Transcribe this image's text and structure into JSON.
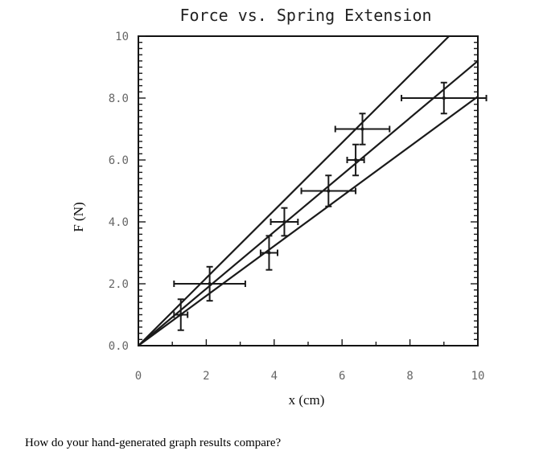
{
  "chart_data": {
    "type": "scatter",
    "title": "Force vs. Spring Extension",
    "xlabel": "x (cm)",
    "ylabel": "F (N)",
    "xlim": [
      0,
      10
    ],
    "ylim": [
      0,
      10
    ],
    "x_ticks": [
      "0",
      "2",
      "4",
      "6",
      "8",
      "10"
    ],
    "y_ticks": [
      "0.0",
      "2.0",
      "4.0",
      "6.0",
      "8.0",
      "10"
    ],
    "grid": false,
    "points": [
      {
        "x": 1.25,
        "y": 1.0,
        "x_err": 0.2,
        "y_err": 0.5
      },
      {
        "x": 2.1,
        "y": 2.0,
        "x_err": 1.05,
        "y_err": 0.55
      },
      {
        "x": 3.85,
        "y": 3.0,
        "x_err": 0.25,
        "y_err": 0.55
      },
      {
        "x": 4.3,
        "y": 4.0,
        "x_err": 0.4,
        "y_err": 0.45
      },
      {
        "x": 5.6,
        "y": 5.0,
        "x_err": 0.8,
        "y_err": 0.5
      },
      {
        "x": 6.4,
        "y": 6.0,
        "x_err": 0.25,
        "y_err": 0.5
      },
      {
        "x": 6.6,
        "y": 7.0,
        "x_err": 0.8,
        "y_err": 0.5
      },
      {
        "x": 9.0,
        "y": 8.0,
        "x_err": 1.25,
        "y_err": 0.5
      }
    ],
    "lines": [
      {
        "x": [
          0,
          9.15
        ],
        "y": [
          0,
          10
        ]
      },
      {
        "x": [
          0,
          10
        ],
        "y": [
          0,
          9.2
        ]
      },
      {
        "x": [
          0,
          10
        ],
        "y": [
          0,
          8.05
        ]
      }
    ]
  },
  "caption": "How do your hand-generated graph results compare?"
}
